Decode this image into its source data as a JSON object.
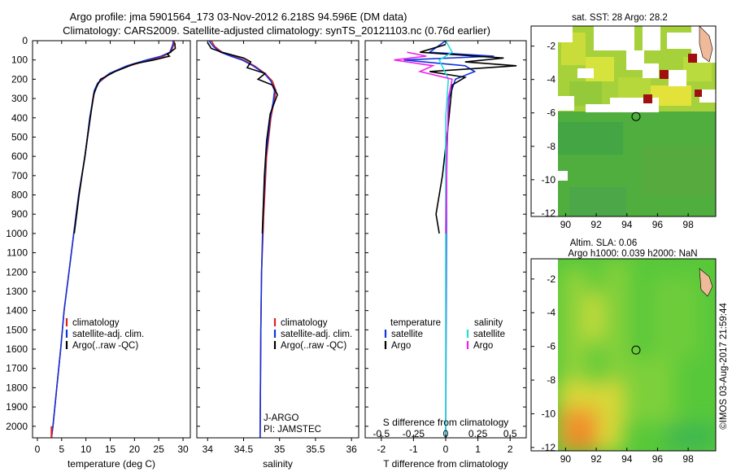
{
  "header": {
    "title_line1": "Argo profile: jma 5901564_173 03-Nov-2012 6.218S 94.596E (DM data)",
    "title_line2": "Climatology: CARS2009. Satellite-adjusted climatology: synTS_20121103.nc (0.76d earlier)"
  },
  "colors": {
    "climatology": "#dd2222",
    "satellite": "#1133dd",
    "argo": "#000000",
    "argo_salinity": "#ee22ee",
    "satellite_salinity": "#22dddd"
  },
  "chart_data": [
    {
      "type": "line",
      "name": "temperature-profile",
      "xlabel": "temperature (deg C)",
      "ylabel": "",
      "xlim": [
        -1,
        31.5
      ],
      "ylim": [
        2060,
        0
      ],
      "xticks": [
        0,
        5,
        10,
        15,
        20,
        25,
        30
      ],
      "yticks": [
        0,
        100,
        200,
        300,
        400,
        500,
        600,
        700,
        800,
        900,
        1000,
        1100,
        1200,
        1300,
        1400,
        1500,
        1600,
        1700,
        1800,
        1900,
        2000
      ],
      "legend": [
        "climatology",
        "satellite-adj. clim.",
        "Argo(..raw -QC)"
      ],
      "series": [
        {
          "name": "climatology",
          "points": [
            [
              28.2,
              0
            ],
            [
              28.1,
              20
            ],
            [
              27.5,
              60
            ],
            [
              26,
              80
            ],
            [
              23,
              100
            ],
            [
              19,
              130
            ],
            [
              15,
              170
            ],
            [
              12.5,
              220
            ],
            [
              11.8,
              260
            ],
            [
              10.8,
              400
            ],
            [
              9.8,
              600
            ],
            [
              8.5,
              800
            ],
            [
              7.5,
              1000
            ],
            [
              6.5,
              1200
            ],
            [
              5.5,
              1400
            ],
            [
              4.8,
              1600
            ],
            [
              4.0,
              1800
            ],
            [
              3.2,
              2000
            ],
            [
              2.9,
              2060
            ]
          ]
        },
        {
          "name": "satellite-adj. clim.",
          "points": [
            [
              28.0,
              0
            ],
            [
              27.9,
              20
            ],
            [
              27.3,
              60
            ],
            [
              25.5,
              80
            ],
            [
              22.5,
              100
            ],
            [
              18.5,
              130
            ],
            [
              14.8,
              170
            ],
            [
              12.4,
              220
            ],
            [
              11.7,
              260
            ],
            [
              10.8,
              400
            ],
            [
              9.8,
              600
            ],
            [
              8.5,
              800
            ],
            [
              7.5,
              1000
            ],
            [
              6.5,
              1200
            ],
            [
              5.5,
              1400
            ],
            [
              4.8,
              1600
            ],
            [
              4.0,
              1800
            ],
            [
              3.2,
              2000
            ],
            [
              2.9,
              2060
            ]
          ]
        },
        {
          "name": "Argo(..raw -QC)",
          "points": [
            [
              28.3,
              10
            ],
            [
              28.4,
              40
            ],
            [
              26.8,
              70
            ],
            [
              27.2,
              80
            ],
            [
              24,
              100
            ],
            [
              20,
              120
            ],
            [
              16,
              160
            ],
            [
              13,
              200
            ],
            [
              12.2,
              240
            ],
            [
              11.6,
              280
            ],
            [
              10.9,
              400
            ],
            [
              10,
              560
            ],
            [
              8.6,
              800
            ],
            [
              7.6,
              1000
            ]
          ]
        }
      ]
    },
    {
      "type": "line",
      "name": "salinity-profile",
      "xlabel": "salinity",
      "xlim": [
        33.85,
        36.1
      ],
      "ylim": [
        2060,
        0
      ],
      "xticks": [
        34,
        34.5,
        35,
        35.5,
        36
      ],
      "legend": [
        "climatology",
        "satellite-adj. clim.",
        "Argo(..raw -QC)"
      ],
      "notes": [
        "J-ARGO",
        "PI: JAMSTEC"
      ],
      "series": [
        {
          "name": "climatology",
          "points": [
            [
              34.05,
              0
            ],
            [
              34.1,
              30
            ],
            [
              34.2,
              60
            ],
            [
              34.35,
              80
            ],
            [
              34.5,
              100
            ],
            [
              34.65,
              130
            ],
            [
              34.8,
              170
            ],
            [
              34.9,
              210
            ],
            [
              34.95,
              260
            ],
            [
              34.92,
              320
            ],
            [
              34.88,
              400
            ],
            [
              34.82,
              600
            ],
            [
              34.78,
              900
            ],
            [
              34.75,
              1200
            ],
            [
              34.74,
              1500
            ],
            [
              34.73,
              2060
            ]
          ]
        },
        {
          "name": "satellite-adj. clim.",
          "points": [
            [
              34.02,
              0
            ],
            [
              34.08,
              30
            ],
            [
              34.18,
              60
            ],
            [
              34.32,
              80
            ],
            [
              34.48,
              100
            ],
            [
              34.63,
              130
            ],
            [
              34.79,
              170
            ],
            [
              34.88,
              210
            ],
            [
              34.93,
              260
            ],
            [
              34.91,
              320
            ],
            [
              34.87,
              400
            ],
            [
              34.81,
              600
            ],
            [
              34.77,
              900
            ],
            [
              34.75,
              1200
            ],
            [
              34.74,
              1500
            ],
            [
              34.73,
              2060
            ]
          ]
        },
        {
          "name": "Argo(..raw -QC)",
          "points": [
            [
              34.0,
              10
            ],
            [
              34.05,
              40
            ],
            [
              34.2,
              60
            ],
            [
              34.35,
              75
            ],
            [
              34.5,
              90
            ],
            [
              34.6,
              110
            ],
            [
              34.55,
              140
            ],
            [
              34.8,
              170
            ],
            [
              34.7,
              200
            ],
            [
              34.9,
              230
            ],
            [
              34.97,
              280
            ],
            [
              34.93,
              320
            ],
            [
              34.87,
              380
            ],
            [
              34.82,
              520
            ],
            [
              34.79,
              700
            ],
            [
              34.76,
              1000
            ]
          ]
        }
      ]
    },
    {
      "type": "line",
      "name": "difference-profile",
      "xlabel": "T difference from climatology",
      "title_bottom": "S difference from climatology",
      "xlim": [
        -2.5,
        2.5
      ],
      "ylim": [
        2060,
        0
      ],
      "xticks": [
        -2,
        -1,
        0,
        1,
        2
      ],
      "xticks_s": [
        -0.5,
        -0.25,
        0,
        0.25,
        0.5
      ],
      "legend_headers": [
        "temperature",
        "salinity"
      ],
      "legend": [
        "satellite",
        "Argo",
        "satellite",
        "Argo"
      ],
      "series": [
        {
          "name": "T satellite",
          "points": [
            [
              0,
              0
            ],
            [
              -0.5,
              60
            ],
            [
              1.5,
              80
            ],
            [
              -1.3,
              100
            ],
            [
              0.6,
              130
            ],
            [
              0.9,
              160
            ],
            [
              0.3,
              200
            ],
            [
              0.1,
              300
            ],
            [
              0.03,
              600
            ],
            [
              0.0,
              2060
            ]
          ]
        },
        {
          "name": "T Argo",
          "points": [
            [
              0,
              20
            ],
            [
              -0.8,
              60
            ],
            [
              1.8,
              90
            ],
            [
              0.6,
              110
            ],
            [
              2.2,
              130
            ],
            [
              -0.5,
              160
            ],
            [
              0.6,
              190
            ],
            [
              0.2,
              230
            ],
            [
              0.1,
              400
            ],
            [
              -0.1,
              700
            ],
            [
              -0.3,
              900
            ],
            [
              -0.2,
              1000
            ]
          ]
        },
        {
          "name": "S satellite",
          "points": [
            [
              0,
              0
            ],
            [
              0.05,
              60
            ],
            [
              -0.05,
              100
            ],
            [
              0.02,
              200
            ],
            [
              0,
              400
            ],
            [
              0,
              2060
            ]
          ]
        },
        {
          "name": "S Argo",
          "points": [
            [
              -0.3,
              60
            ],
            [
              -0.15,
              80
            ],
            [
              -0.4,
              100
            ],
            [
              -0.1,
              130
            ],
            [
              -0.2,
              160
            ],
            [
              0.05,
              200
            ],
            [
              0.02,
              300
            ],
            [
              0.01,
              600
            ],
            [
              0,
              1000
            ]
          ]
        }
      ]
    },
    {
      "type": "heatmap",
      "name": "sst-map",
      "title": "sat. SST: 28 Argo: 28.2",
      "xlim": [
        89.5,
        99.8
      ],
      "ylim": [
        -12.2,
        -0.8
      ],
      "xticks": [
        90,
        92,
        94,
        96,
        98
      ],
      "yticks": [
        -2,
        -4,
        -6,
        -8,
        -10,
        -12
      ],
      "marker": [
        94.596,
        -6.218
      ]
    },
    {
      "type": "heatmap",
      "name": "sla-map",
      "title_line1": "Altim. SLA: 0.06",
      "title_line2": "Argo h1000: 0.039 h2000: NaN",
      "xlim": [
        89.5,
        99.8
      ],
      "ylim": [
        -12.2,
        -0.8
      ],
      "xticks": [
        90,
        92,
        94,
        96,
        98
      ],
      "yticks": [
        -2,
        -4,
        -6,
        -8,
        -10,
        -12
      ],
      "marker": [
        94.596,
        -6.218
      ]
    }
  ],
  "watermark": "©IMOS 03-Aug-2017 21:59:44"
}
